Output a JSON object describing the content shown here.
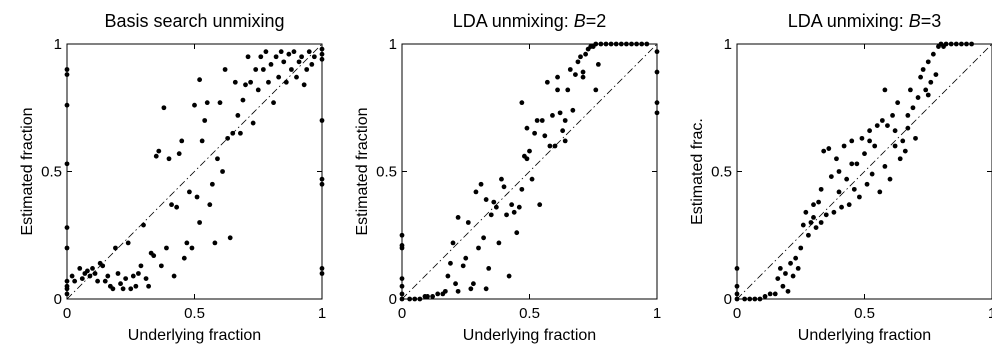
{
  "chart_data": [
    {
      "type": "scatter",
      "title": "Basis search unmixing",
      "xlabel": "Underlying fraction",
      "ylabel": "Estimated fraction",
      "xlim": [
        0,
        1
      ],
      "ylim": [
        0,
        1
      ],
      "xticks": [
        "0",
        "0.5",
        "1"
      ],
      "yticks": [
        "0",
        "0.5",
        "1"
      ],
      "reference_line": "y = x (dash-dot)",
      "points": [
        [
          0.0,
          0.9
        ],
        [
          0.0,
          0.88
        ],
        [
          0.0,
          0.76
        ],
        [
          0.0,
          0.53
        ],
        [
          0.0,
          0.28
        ],
        [
          0.0,
          0.2
        ],
        [
          0.0,
          0.07
        ],
        [
          0.0,
          0.05
        ],
        [
          0.0,
          0.04
        ],
        [
          0.0,
          0.02
        ],
        [
          1.0,
          0.98
        ],
        [
          1.0,
          0.96
        ],
        [
          1.0,
          0.94
        ],
        [
          1.0,
          0.7
        ],
        [
          1.0,
          0.47
        ],
        [
          1.0,
          0.45
        ],
        [
          1.0,
          0.12
        ],
        [
          1.0,
          0.1
        ],
        [
          0.02,
          0.09
        ],
        [
          0.03,
          0.07
        ],
        [
          0.05,
          0.12
        ],
        [
          0.06,
          0.08
        ],
        [
          0.07,
          0.1
        ],
        [
          0.08,
          0.11
        ],
        [
          0.09,
          0.09
        ],
        [
          0.1,
          0.12
        ],
        [
          0.11,
          0.1
        ],
        [
          0.12,
          0.07
        ],
        [
          0.13,
          0.14
        ],
        [
          0.14,
          0.13
        ],
        [
          0.15,
          0.07
        ],
        [
          0.16,
          0.09
        ],
        [
          0.17,
          0.05
        ],
        [
          0.18,
          0.04
        ],
        [
          0.19,
          0.2
        ],
        [
          0.2,
          0.1
        ],
        [
          0.21,
          0.06
        ],
        [
          0.22,
          0.04
        ],
        [
          0.23,
          0.08
        ],
        [
          0.24,
          0.22
        ],
        [
          0.25,
          0.04
        ],
        [
          0.26,
          0.09
        ],
        [
          0.27,
          0.05
        ],
        [
          0.28,
          0.1
        ],
        [
          0.29,
          0.13
        ],
        [
          0.3,
          0.29
        ],
        [
          0.31,
          0.08
        ],
        [
          0.32,
          0.05
        ],
        [
          0.33,
          0.18
        ],
        [
          0.34,
          0.17
        ],
        [
          0.35,
          0.56
        ],
        [
          0.36,
          0.58
        ],
        [
          0.37,
          0.13
        ],
        [
          0.38,
          0.75
        ],
        [
          0.39,
          0.2
        ],
        [
          0.4,
          0.55
        ],
        [
          0.41,
          0.37
        ],
        [
          0.42,
          0.09
        ],
        [
          0.43,
          0.36
        ],
        [
          0.44,
          0.57
        ],
        [
          0.45,
          0.62
        ],
        [
          0.46,
          0.16
        ],
        [
          0.47,
          0.22
        ],
        [
          0.48,
          0.42
        ],
        [
          0.49,
          0.2
        ],
        [
          0.5,
          0.76
        ],
        [
          0.51,
          0.4
        ],
        [
          0.52,
          0.3
        ],
        [
          0.53,
          0.62
        ],
        [
          0.54,
          0.7
        ],
        [
          0.55,
          0.77
        ],
        [
          0.56,
          0.37
        ],
        [
          0.57,
          0.45
        ],
        [
          0.58,
          0.22
        ],
        [
          0.59,
          0.55
        ],
        [
          0.6,
          0.77
        ],
        [
          0.61,
          0.5
        ],
        [
          0.62,
          0.9
        ],
        [
          0.63,
          0.63
        ],
        [
          0.64,
          0.24
        ],
        [
          0.65,
          0.65
        ],
        [
          0.66,
          0.85
        ],
        [
          0.67,
          0.72
        ],
        [
          0.68,
          0.65
        ],
        [
          0.69,
          0.78
        ],
        [
          0.7,
          0.84
        ],
        [
          0.71,
          0.95
        ],
        [
          0.72,
          0.85
        ],
        [
          0.73,
          0.69
        ],
        [
          0.74,
          0.9
        ],
        [
          0.75,
          0.82
        ],
        [
          0.76,
          0.95
        ],
        [
          0.77,
          0.9
        ],
        [
          0.78,
          0.97
        ],
        [
          0.79,
          0.85
        ],
        [
          0.8,
          0.92
        ],
        [
          0.81,
          0.77
        ],
        [
          0.82,
          0.95
        ],
        [
          0.83,
          0.87
        ],
        [
          0.84,
          0.97
        ],
        [
          0.85,
          0.93
        ],
        [
          0.86,
          0.85
        ],
        [
          0.87,
          0.96
        ],
        [
          0.88,
          0.9
        ],
        [
          0.89,
          0.97
        ],
        [
          0.9,
          0.87
        ],
        [
          0.91,
          0.93
        ],
        [
          0.92,
          0.95
        ],
        [
          0.93,
          0.84
        ],
        [
          0.94,
          0.9
        ],
        [
          0.95,
          0.97
        ],
        [
          0.96,
          0.92
        ],
        [
          0.97,
          0.95
        ],
        [
          0.52,
          0.86
        ]
      ]
    },
    {
      "type": "scatter",
      "title": "LDA unmixing:  B=2",
      "xlabel": "Underlying fraction",
      "ylabel": "Estimated fraction",
      "xlim": [
        0,
        1
      ],
      "ylim": [
        0,
        1
      ],
      "xticks": [
        "0",
        "0.5",
        "1"
      ],
      "yticks": [
        "0",
        "0.5",
        "1"
      ],
      "reference_line": "y = x (dash-dot)",
      "points": [
        [
          0.0,
          0.25
        ],
        [
          0.0,
          0.21
        ],
        [
          0.0,
          0.2
        ],
        [
          0.0,
          0.08
        ],
        [
          0.0,
          0.05
        ],
        [
          0.0,
          0.02
        ],
        [
          0.0,
          0.0
        ],
        [
          1.0,
          0.97
        ],
        [
          1.0,
          0.89
        ],
        [
          1.0,
          0.77
        ],
        [
          1.0,
          0.73
        ],
        [
          0.03,
          0.0
        ],
        [
          0.05,
          0.0
        ],
        [
          0.07,
          0.0
        ],
        [
          0.09,
          0.01
        ],
        [
          0.1,
          0.01
        ],
        [
          0.12,
          0.01
        ],
        [
          0.14,
          0.02
        ],
        [
          0.16,
          0.02
        ],
        [
          0.17,
          0.03
        ],
        [
          0.18,
          0.09
        ],
        [
          0.2,
          0.22
        ],
        [
          0.21,
          0.06
        ],
        [
          0.22,
          0.03
        ],
        [
          0.24,
          0.13
        ],
        [
          0.25,
          0.16
        ],
        [
          0.26,
          0.3
        ],
        [
          0.27,
          0.04
        ],
        [
          0.28,
          0.06
        ],
        [
          0.29,
          0.42
        ],
        [
          0.3,
          0.2
        ],
        [
          0.31,
          0.45
        ],
        [
          0.32,
          0.24
        ],
        [
          0.33,
          0.39
        ],
        [
          0.34,
          0.12
        ],
        [
          0.35,
          0.33
        ],
        [
          0.36,
          0.38
        ],
        [
          0.37,
          0.36
        ],
        [
          0.38,
          0.22
        ],
        [
          0.39,
          0.47
        ],
        [
          0.4,
          0.44
        ],
        [
          0.41,
          0.33
        ],
        [
          0.42,
          0.09
        ],
        [
          0.43,
          0.37
        ],
        [
          0.44,
          0.34
        ],
        [
          0.45,
          0.26
        ],
        [
          0.46,
          0.36
        ],
        [
          0.47,
          0.43
        ],
        [
          0.48,
          0.56
        ],
        [
          0.49,
          0.55
        ],
        [
          0.5,
          0.58
        ],
        [
          0.51,
          0.47
        ],
        [
          0.52,
          0.65
        ],
        [
          0.53,
          0.7
        ],
        [
          0.54,
          0.37
        ],
        [
          0.55,
          0.7
        ],
        [
          0.56,
          0.64
        ],
        [
          0.57,
          0.85
        ],
        [
          0.58,
          0.6
        ],
        [
          0.59,
          0.72
        ],
        [
          0.6,
          0.6
        ],
        [
          0.61,
          0.82
        ],
        [
          0.62,
          0.73
        ],
        [
          0.63,
          0.66
        ],
        [
          0.64,
          0.7
        ],
        [
          0.65,
          0.82
        ],
        [
          0.66,
          0.9
        ],
        [
          0.67,
          0.74
        ],
        [
          0.68,
          0.88
        ],
        [
          0.69,
          0.93
        ],
        [
          0.7,
          0.95
        ],
        [
          0.71,
          0.87
        ],
        [
          0.72,
          0.96
        ],
        [
          0.73,
          0.98
        ],
        [
          0.74,
          0.99
        ],
        [
          0.75,
          0.99
        ],
        [
          0.76,
          1.0
        ],
        [
          0.78,
          1.0
        ],
        [
          0.8,
          1.0
        ],
        [
          0.82,
          1.0
        ],
        [
          0.84,
          1.0
        ],
        [
          0.86,
          1.0
        ],
        [
          0.88,
          1.0
        ],
        [
          0.9,
          1.0
        ],
        [
          0.92,
          1.0
        ],
        [
          0.94,
          1.0
        ],
        [
          0.96,
          1.0
        ],
        [
          0.47,
          0.77
        ],
        [
          0.33,
          0.04
        ],
        [
          0.64,
          0.62
        ],
        [
          0.22,
          0.32
        ],
        [
          0.76,
          0.82
        ],
        [
          0.61,
          0.87
        ],
        [
          0.49,
          0.67
        ],
        [
          0.19,
          0.14
        ],
        [
          0.77,
          0.92
        ],
        [
          0.71,
          0.89
        ]
      ]
    },
    {
      "type": "scatter",
      "title": "LDA unmixing:  B=3",
      "xlabel": "Underlying fraction",
      "ylabel": "Estimated frac.",
      "xlim": [
        0,
        1
      ],
      "ylim": [
        0,
        1
      ],
      "xticks": [
        "0",
        "0.5",
        "1"
      ],
      "yticks": [
        "0",
        "0.5",
        "1"
      ],
      "reference_line": "y = x (dash-dot)",
      "points": [
        [
          0.0,
          0.12
        ],
        [
          0.0,
          0.05
        ],
        [
          0.0,
          0.02
        ],
        [
          0.0,
          0.0
        ],
        [
          0.03,
          0.0
        ],
        [
          0.05,
          0.0
        ],
        [
          0.07,
          0.0
        ],
        [
          0.09,
          0.0
        ],
        [
          0.11,
          0.01
        ],
        [
          0.13,
          0.02
        ],
        [
          0.15,
          0.02
        ],
        [
          0.16,
          0.08
        ],
        [
          0.17,
          0.12
        ],
        [
          0.18,
          0.05
        ],
        [
          0.19,
          0.1
        ],
        [
          0.2,
          0.03
        ],
        [
          0.21,
          0.14
        ],
        [
          0.22,
          0.09
        ],
        [
          0.23,
          0.16
        ],
        [
          0.24,
          0.12
        ],
        [
          0.25,
          0.2
        ],
        [
          0.26,
          0.29
        ],
        [
          0.27,
          0.34
        ],
        [
          0.28,
          0.25
        ],
        [
          0.29,
          0.3
        ],
        [
          0.3,
          0.37
        ],
        [
          0.31,
          0.28
        ],
        [
          0.32,
          0.38
        ],
        [
          0.33,
          0.43
        ],
        [
          0.34,
          0.58
        ],
        [
          0.35,
          0.33
        ],
        [
          0.36,
          0.59
        ],
        [
          0.37,
          0.48
        ],
        [
          0.38,
          0.34
        ],
        [
          0.39,
          0.55
        ],
        [
          0.4,
          0.42
        ],
        [
          0.41,
          0.36
        ],
        [
          0.42,
          0.6
        ],
        [
          0.43,
          0.47
        ],
        [
          0.44,
          0.37
        ],
        [
          0.45,
          0.62
        ],
        [
          0.46,
          0.43
        ],
        [
          0.47,
          0.53
        ],
        [
          0.48,
          0.4
        ],
        [
          0.49,
          0.63
        ],
        [
          0.5,
          0.57
        ],
        [
          0.51,
          0.45
        ],
        [
          0.52,
          0.66
        ],
        [
          0.53,
          0.49
        ],
        [
          0.54,
          0.6
        ],
        [
          0.55,
          0.68
        ],
        [
          0.56,
          0.42
        ],
        [
          0.57,
          0.7
        ],
        [
          0.58,
          0.52
        ],
        [
          0.59,
          0.68
        ],
        [
          0.6,
          0.47
        ],
        [
          0.61,
          0.72
        ],
        [
          0.62,
          0.66
        ],
        [
          0.63,
          0.77
        ],
        [
          0.64,
          0.55
        ],
        [
          0.65,
          0.62
        ],
        [
          0.66,
          0.58
        ],
        [
          0.67,
          0.72
        ],
        [
          0.68,
          0.82
        ],
        [
          0.69,
          0.75
        ],
        [
          0.7,
          0.63
        ],
        [
          0.71,
          0.79
        ],
        [
          0.72,
          0.87
        ],
        [
          0.73,
          0.9
        ],
        [
          0.74,
          0.82
        ],
        [
          0.75,
          0.93
        ],
        [
          0.76,
          0.85
        ],
        [
          0.77,
          0.96
        ],
        [
          0.78,
          0.88
        ],
        [
          0.79,
          0.99
        ],
        [
          0.8,
          1.0
        ],
        [
          0.81,
          0.99
        ],
        [
          0.82,
          1.0
        ],
        [
          0.84,
          1.0
        ],
        [
          0.86,
          1.0
        ],
        [
          0.88,
          1.0
        ],
        [
          0.9,
          1.0
        ],
        [
          0.92,
          1.0
        ],
        [
          0.58,
          0.82
        ],
        [
          0.4,
          0.5
        ],
        [
          0.3,
          0.32
        ],
        [
          0.67,
          0.67
        ],
        [
          0.52,
          0.62
        ],
        [
          0.45,
          0.53
        ],
        [
          0.62,
          0.6
        ],
        [
          0.75,
          0.8
        ],
        [
          0.33,
          0.3
        ]
      ]
    }
  ]
}
